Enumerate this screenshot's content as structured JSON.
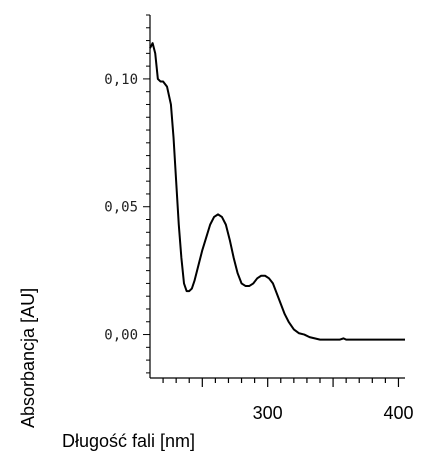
{
  "chart_data": {
    "type": "line",
    "xlabel": "Długość fali [nm]",
    "ylabel": "Absorbancja [AU]",
    "xlim": [
      210,
      405
    ],
    "ylim": [
      -0.017,
      0.125
    ],
    "x_ticks": [
      {
        "value": 300,
        "label": "300"
      },
      {
        "value": 400,
        "label": "400"
      }
    ],
    "y_ticks": [
      {
        "value": 0.0,
        "label": "0,00"
      },
      {
        "value": 0.05,
        "label": "0,05"
      },
      {
        "value": 0.1,
        "label": "0,10"
      }
    ],
    "grid": false,
    "series": [
      {
        "color": "#000000",
        "x": [
          210,
          212,
          214,
          216,
          218,
          220,
          223,
          226,
          228,
          230,
          232,
          234,
          236,
          238,
          240,
          242,
          244,
          246,
          248,
          250,
          253,
          256,
          259,
          262,
          265,
          268,
          271,
          274,
          277,
          280,
          283,
          286,
          289,
          292,
          295,
          298,
          301,
          304,
          307,
          310,
          313,
          316,
          320,
          324,
          328,
          332,
          336,
          340,
          345,
          350,
          355,
          358,
          360,
          365,
          370,
          380,
          390,
          400,
          405
        ],
        "y": [
          0.112,
          0.114,
          0.11,
          0.1,
          0.099,
          0.099,
          0.097,
          0.09,
          0.077,
          0.06,
          0.043,
          0.03,
          0.02,
          0.017,
          0.017,
          0.018,
          0.021,
          0.025,
          0.029,
          0.033,
          0.038,
          0.043,
          0.046,
          0.047,
          0.046,
          0.043,
          0.037,
          0.03,
          0.024,
          0.02,
          0.019,
          0.019,
          0.02,
          0.022,
          0.023,
          0.023,
          0.022,
          0.02,
          0.016,
          0.012,
          0.008,
          0.005,
          0.002,
          0.0005,
          0.0,
          -0.001,
          -0.0015,
          -0.002,
          -0.002,
          -0.002,
          -0.002,
          -0.0015,
          -0.002,
          -0.002,
          -0.002,
          -0.002,
          -0.002,
          -0.002,
          -0.002
        ]
      }
    ]
  }
}
